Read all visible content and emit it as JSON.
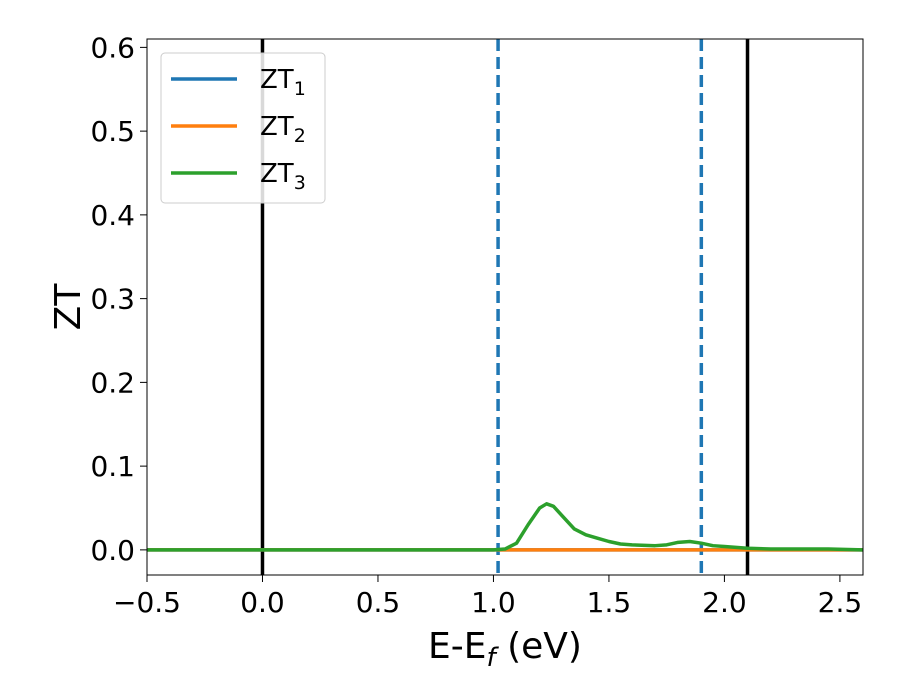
{
  "chart_data": {
    "type": "line",
    "xlabel": "E-E",
    "xlabel_sub": "f",
    "xlabel_unit": " (eV)",
    "ylabel": "ZT",
    "xlim": [
      -0.5,
      2.6
    ],
    "ylim": [
      -0.03,
      0.61
    ],
    "xticks": [
      -0.5,
      0.0,
      0.5,
      1.0,
      1.5,
      2.0,
      2.5
    ],
    "xtick_labels": [
      "−0.5",
      "0.0",
      "0.5",
      "1.0",
      "1.5",
      "2.0",
      "2.5"
    ],
    "yticks": [
      0.0,
      0.1,
      0.2,
      0.3,
      0.4,
      0.5,
      0.6
    ],
    "ytick_labels": [
      "0.0",
      "0.1",
      "0.2",
      "0.3",
      "0.4",
      "0.5",
      "0.6"
    ],
    "legend_position": "top-left",
    "grid": false,
    "vlines": [
      {
        "x": 0.0,
        "style": "solid",
        "color": "#000000"
      },
      {
        "x": 2.1,
        "style": "solid",
        "color": "#000000"
      },
      {
        "x": 1.02,
        "style": "dashed",
        "color": "#1f77b4"
      },
      {
        "x": 1.9,
        "style": "dashed",
        "color": "#1f77b4"
      }
    ],
    "series": [
      {
        "name": "ZT",
        "name_sub": "1",
        "color": "#1f77b4",
        "x": [
          -0.5,
          0.0,
          0.5,
          1.0,
          1.5,
          2.0,
          2.6
        ],
        "y": [
          0.0,
          0.0,
          0.0,
          0.0,
          0.0,
          0.0,
          0.0
        ]
      },
      {
        "name": "ZT",
        "name_sub": "2",
        "color": "#ff7f0e",
        "x": [
          -0.5,
          0.0,
          0.5,
          1.0,
          1.5,
          2.0,
          2.6
        ],
        "y": [
          0.0,
          0.0,
          0.0,
          0.0,
          0.0,
          0.0,
          0.0
        ]
      },
      {
        "name": "ZT",
        "name_sub": "3",
        "color": "#2ca02c",
        "x": [
          -0.5,
          0.0,
          0.5,
          1.0,
          1.05,
          1.1,
          1.15,
          1.2,
          1.23,
          1.26,
          1.3,
          1.35,
          1.4,
          1.45,
          1.5,
          1.55,
          1.6,
          1.7,
          1.75,
          1.8,
          1.85,
          1.9,
          1.95,
          2.0,
          2.1,
          2.2,
          2.3,
          2.45,
          2.6
        ],
        "y": [
          0.0,
          0.0,
          0.0,
          0.0,
          0.001,
          0.008,
          0.03,
          0.05,
          0.055,
          0.052,
          0.04,
          0.025,
          0.018,
          0.014,
          0.01,
          0.007,
          0.006,
          0.005,
          0.006,
          0.009,
          0.01,
          0.008,
          0.005,
          0.004,
          0.002,
          0.001,
          0.001,
          0.001,
          0.0
        ]
      }
    ]
  }
}
